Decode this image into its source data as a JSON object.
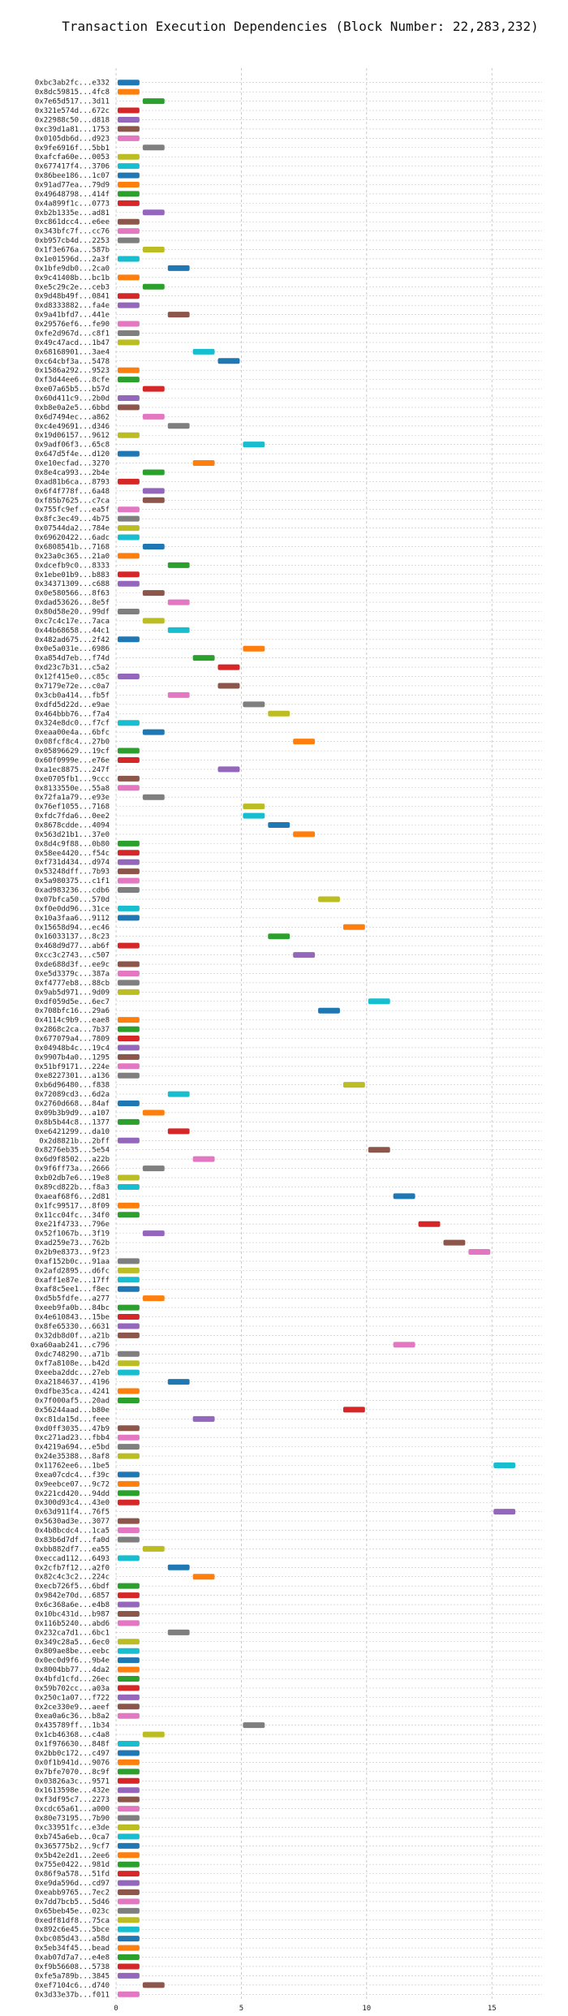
{
  "chart_data": {
    "type": "bar",
    "orientation": "horizontal",
    "title": "Transaction Execution Dependencies (Block Number: 22,283,232)",
    "xlabel": "",
    "ylabel": "",
    "xlim": [
      0,
      17
    ],
    "xticks": [
      0,
      5,
      10,
      15
    ],
    "grid": true,
    "colors": [
      "#1f77b4",
      "#ff7f0e",
      "#2ca02c",
      "#d62728",
      "#9467bd",
      "#8c564b",
      "#e377c2",
      "#7f7f7f",
      "#bcbd22",
      "#17becf"
    ],
    "transactions": [
      {
        "label": "0xbc3ab2fc...e332",
        "start": 0,
        "end": 1
      },
      {
        "label": "0x8dc59815...4fc8",
        "start": 0,
        "end": 1
      },
      {
        "label": "0x7e65d517...3d11",
        "start": 1,
        "end": 2
      },
      {
        "label": "0x321e574d...672c",
        "start": 0,
        "end": 1
      },
      {
        "label": "0x22988c50...d818",
        "start": 0,
        "end": 1
      },
      {
        "label": "0xc39d1a81...1753",
        "start": 0,
        "end": 1
      },
      {
        "label": "0x0105db6d...d923",
        "start": 0,
        "end": 1
      },
      {
        "label": "0x9fe6916f...5bb1",
        "start": 1,
        "end": 2
      },
      {
        "label": "0xafcfa60e...0053",
        "start": 0,
        "end": 1
      },
      {
        "label": "0x677417f4...3706",
        "start": 0,
        "end": 1
      },
      {
        "label": "0x86bee186...1c07",
        "start": 0,
        "end": 1
      },
      {
        "label": "0x91ad77ea...79d9",
        "start": 0,
        "end": 1
      },
      {
        "label": "0x49648798...414f",
        "start": 0,
        "end": 1
      },
      {
        "label": "0x4a899f1c...0773",
        "start": 0,
        "end": 1
      },
      {
        "label": "0xb2b1335e...ad81",
        "start": 1,
        "end": 2
      },
      {
        "label": "0xc861dcc4...e6ee",
        "start": 0,
        "end": 1
      },
      {
        "label": "0x343bfc7f...cc76",
        "start": 0,
        "end": 1
      },
      {
        "label": "0xb957cb4d...2253",
        "start": 0,
        "end": 1
      },
      {
        "label": "0x1f3e676a...587b",
        "start": 1,
        "end": 2
      },
      {
        "label": "0x1e01596d...2a3f",
        "start": 0,
        "end": 1
      },
      {
        "label": "0x1bfe9db0...2ca0",
        "start": 2,
        "end": 3
      },
      {
        "label": "0x9c41408b...bc1b",
        "start": 0,
        "end": 1
      },
      {
        "label": "0xe5c29c2e...ceb3",
        "start": 1,
        "end": 2
      },
      {
        "label": "0x9d48b49f...0841",
        "start": 0,
        "end": 1
      },
      {
        "label": "0xd8333882...fa4e",
        "start": 0,
        "end": 1
      },
      {
        "label": "0x9a41bfd7...441e",
        "start": 2,
        "end": 3
      },
      {
        "label": "0x29576ef6...fe90",
        "start": 0,
        "end": 1
      },
      {
        "label": "0xfe2d967d...c8f1",
        "start": 0,
        "end": 1
      },
      {
        "label": "0x49c47acd...1b47",
        "start": 0,
        "end": 1
      },
      {
        "label": "0x68168901...3ae4",
        "start": 3,
        "end": 4
      },
      {
        "label": "0xc64cbf3a...5478",
        "start": 4,
        "end": 5
      },
      {
        "label": "0x1586a292...9523",
        "start": 0,
        "end": 1
      },
      {
        "label": "0xf3d44ee6...8cfe",
        "start": 0,
        "end": 1
      },
      {
        "label": "0xe07a65b5...b57d",
        "start": 1,
        "end": 2
      },
      {
        "label": "0x60d411c9...2b0d",
        "start": 0,
        "end": 1
      },
      {
        "label": "0xb8e0a2e5...6bbd",
        "start": 0,
        "end": 1
      },
      {
        "label": "0x6d7494ec...a862",
        "start": 1,
        "end": 2
      },
      {
        "label": "0xc4e49691...d346",
        "start": 2,
        "end": 3
      },
      {
        "label": "0x19d06157...9612",
        "start": 0,
        "end": 1
      },
      {
        "label": "0x9adf06f3...65c8",
        "start": 5,
        "end": 6
      },
      {
        "label": "0x647d5f4e...d120",
        "start": 0,
        "end": 1
      },
      {
        "label": "0xe10ecfad...3270",
        "start": 3,
        "end": 4
      },
      {
        "label": "0x8e4ca993...2b4e",
        "start": 1,
        "end": 2
      },
      {
        "label": "0xad81b6ca...8793",
        "start": 0,
        "end": 1
      },
      {
        "label": "0x6f4f778f...6a48",
        "start": 1,
        "end": 2
      },
      {
        "label": "0xf85b7625...c7ca",
        "start": 1,
        "end": 2
      },
      {
        "label": "0x755fc9ef...ea5f",
        "start": 0,
        "end": 1
      },
      {
        "label": "0x8fc3ec49...4b75",
        "start": 0,
        "end": 1
      },
      {
        "label": "0x07544da2...784e",
        "start": 0,
        "end": 1
      },
      {
        "label": "0x69620422...6adc",
        "start": 0,
        "end": 1
      },
      {
        "label": "0x6808541b...7168",
        "start": 1,
        "end": 2
      },
      {
        "label": "0x23a0c365...21a0",
        "start": 0,
        "end": 1
      },
      {
        "label": "0xdcefb9c0...8333",
        "start": 2,
        "end": 3
      },
      {
        "label": "0x1ebe01b9...b883",
        "start": 0,
        "end": 1
      },
      {
        "label": "0x34371309...c688",
        "start": 0,
        "end": 1
      },
      {
        "label": "0x0e580566...8f63",
        "start": 1,
        "end": 2
      },
      {
        "label": "0xdad53626...8e5f",
        "start": 2,
        "end": 3
      },
      {
        "label": "0x80d58e20...99df",
        "start": 0,
        "end": 1
      },
      {
        "label": "0xc7c4c17e...7aca",
        "start": 1,
        "end": 2
      },
      {
        "label": "0x44b68658...44c1",
        "start": 2,
        "end": 3
      },
      {
        "label": "0x482ad675...2f42",
        "start": 0,
        "end": 1
      },
      {
        "label": "0x0e5a031e...6986",
        "start": 5,
        "end": 6
      },
      {
        "label": "0xa854d7eb...f74d",
        "start": 3,
        "end": 4
      },
      {
        "label": "0xd23c7b31...c5a2",
        "start": 4,
        "end": 5
      },
      {
        "label": "0x12f415e0...c85c",
        "start": 0,
        "end": 1
      },
      {
        "label": "0x7179e72e...c0a7",
        "start": 4,
        "end": 5
      },
      {
        "label": "0x3cb0a414...fb5f",
        "start": 2,
        "end": 3
      },
      {
        "label": "0xdfd5d22d...e9ae",
        "start": 5,
        "end": 6
      },
      {
        "label": "0x464bbb76...f7a4",
        "start": 6,
        "end": 7
      },
      {
        "label": "0x324e8dc0...f7cf",
        "start": 0,
        "end": 1
      },
      {
        "label": "0xeaa00e4a...6bfc",
        "start": 1,
        "end": 2
      },
      {
        "label": "0x08fcf8c4...27b0",
        "start": 7,
        "end": 8
      },
      {
        "label": "0x05896629...19cf",
        "start": 0,
        "end": 1
      },
      {
        "label": "0x60f0999e...e76e",
        "start": 0,
        "end": 1
      },
      {
        "label": "0xa1ec8875...247f",
        "start": 4,
        "end": 5
      },
      {
        "label": "0xe0705fb1...9ccc",
        "start": 0,
        "end": 1
      },
      {
        "label": "0x8133550e...55a8",
        "start": 0,
        "end": 1
      },
      {
        "label": "0x72fa1a79...e93e",
        "start": 1,
        "end": 2
      },
      {
        "label": "0x76ef1055...7168",
        "start": 5,
        "end": 6
      },
      {
        "label": "0xfdc7fda6...0ee2",
        "start": 5,
        "end": 6
      },
      {
        "label": "0x8678cdde...4094",
        "start": 6,
        "end": 7
      },
      {
        "label": "0x563d21b1...37e0",
        "start": 7,
        "end": 8
      },
      {
        "label": "0x8d4c9f88...0b80",
        "start": 0,
        "end": 1
      },
      {
        "label": "0x58ee4420...f54c",
        "start": 0,
        "end": 1
      },
      {
        "label": "0xf731d434...d974",
        "start": 0,
        "end": 1
      },
      {
        "label": "0x53248dff...7b93",
        "start": 0,
        "end": 1
      },
      {
        "label": "0x5a980375...c1f1",
        "start": 0,
        "end": 1
      },
      {
        "label": "0xad983236...cdb6",
        "start": 0,
        "end": 1
      },
      {
        "label": "0x07bfca50...570d",
        "start": 8,
        "end": 9
      },
      {
        "label": "0xf0e0dd96...31ce",
        "start": 0,
        "end": 1
      },
      {
        "label": "0x10a3faa6...9112",
        "start": 0,
        "end": 1
      },
      {
        "label": "0x15658d94...ec46",
        "start": 9,
        "end": 10
      },
      {
        "label": "0x16033137...8c23",
        "start": 6,
        "end": 7
      },
      {
        "label": "0x468d9d77...ab6f",
        "start": 0,
        "end": 1
      },
      {
        "label": "0xcc3c2743...c507",
        "start": 7,
        "end": 8
      },
      {
        "label": "0xde688d3f...ee9c",
        "start": 0,
        "end": 1
      },
      {
        "label": "0xe5d3379c...387a",
        "start": 0,
        "end": 1
      },
      {
        "label": "0xf4777eb8...88cb",
        "start": 0,
        "end": 1
      },
      {
        "label": "0x9ab5d971...9d09",
        "start": 0,
        "end": 1
      },
      {
        "label": "0xdf059d5e...6ec7",
        "start": 10,
        "end": 11
      },
      {
        "label": "0x708bfc16...29a6",
        "start": 8,
        "end": 9
      },
      {
        "label": "0x4114c9b9...eae8",
        "start": 0,
        "end": 1
      },
      {
        "label": "0x2868c2ca...7b37",
        "start": 0,
        "end": 1
      },
      {
        "label": "0x677079a4...7809",
        "start": 0,
        "end": 1
      },
      {
        "label": "0x04948b4c...19c4",
        "start": 0,
        "end": 1
      },
      {
        "label": "0x9907b4a0...1295",
        "start": 0,
        "end": 1
      },
      {
        "label": "0x51bf9171...224e",
        "start": 0,
        "end": 1
      },
      {
        "label": "0xe8227301...a136",
        "start": 0,
        "end": 1
      },
      {
        "label": "0xb6d96480...f838",
        "start": 9,
        "end": 10
      },
      {
        "label": "0x72089cd3...6d2a",
        "start": 2,
        "end": 3
      },
      {
        "label": "0x2760d668...84af",
        "start": 0,
        "end": 1
      },
      {
        "label": "0x09b3b9d9...a107",
        "start": 1,
        "end": 2
      },
      {
        "label": "0x8b5b44c8...1377",
        "start": 0,
        "end": 1
      },
      {
        "label": "0xe6421299...da10",
        "start": 2,
        "end": 3
      },
      {
        "label": "0x2d8821b...2bff",
        "start": 0,
        "end": 1
      },
      {
        "label": "0x8276eb35...5e54",
        "start": 10,
        "end": 11
      },
      {
        "label": "0x6d9f8502...a22b",
        "start": 3,
        "end": 4
      },
      {
        "label": "0x9f6ff73a...2666",
        "start": 1,
        "end": 2
      },
      {
        "label": "0xb02db7e6...19e8",
        "start": 0,
        "end": 1
      },
      {
        "label": "0x89cd822b...f8a3",
        "start": 0,
        "end": 1
      },
      {
        "label": "0xaeaf68f6...2d81",
        "start": 11,
        "end": 12
      },
      {
        "label": "0x1fc99517...8f09",
        "start": 0,
        "end": 1
      },
      {
        "label": "0x11cc04fc...34f0",
        "start": 0,
        "end": 1
      },
      {
        "label": "0xe21f4733...796e",
        "start": 12,
        "end": 13
      },
      {
        "label": "0x52f1067b...3f19",
        "start": 1,
        "end": 2
      },
      {
        "label": "0xad259e73...762b",
        "start": 13,
        "end": 14
      },
      {
        "label": "0x2b9e8373...9f23",
        "start": 14,
        "end": 15
      },
      {
        "label": "0xaf152b0c...91aa",
        "start": 0,
        "end": 1
      },
      {
        "label": "0x2afd2895...d6fc",
        "start": 0,
        "end": 1
      },
      {
        "label": "0xaff1e87e...17ff",
        "start": 0,
        "end": 1
      },
      {
        "label": "0xaf8c5ee1...f8ec",
        "start": 0,
        "end": 1
      },
      {
        "label": "0xd5b5fdfe...a277",
        "start": 1,
        "end": 2
      },
      {
        "label": "0xeeb9fa0b...84bc",
        "start": 0,
        "end": 1
      },
      {
        "label": "0x4e610843...15be",
        "start": 0,
        "end": 1
      },
      {
        "label": "0x8fe65330...6631",
        "start": 0,
        "end": 1
      },
      {
        "label": "0x32db8d0f...a21b",
        "start": 0,
        "end": 1
      },
      {
        "label": "0xa60aab241...c796",
        "start": 11,
        "end": 12
      },
      {
        "label": "0xdc748290...a71b",
        "start": 0,
        "end": 1
      },
      {
        "label": "0xf7a8108e...b42d",
        "start": 0,
        "end": 1
      },
      {
        "label": "0xeeba2ddc...27eb",
        "start": 0,
        "end": 1
      },
      {
        "label": "0xa2184637...4196",
        "start": 2,
        "end": 3
      },
      {
        "label": "0xdfbe35ca...4241",
        "start": 0,
        "end": 1
      },
      {
        "label": "0x7f000af5...20ad",
        "start": 0,
        "end": 1
      },
      {
        "label": "0x56244aad...b80e",
        "start": 9,
        "end": 10
      },
      {
        "label": "0xc81da15d...feee",
        "start": 3,
        "end": 4
      },
      {
        "label": "0xd0ff3035...47b9",
        "start": 0,
        "end": 1
      },
      {
        "label": "0xc271ad23...fbb4",
        "start": 0,
        "end": 1
      },
      {
        "label": "0x4219a694...e5bd",
        "start": 0,
        "end": 1
      },
      {
        "label": "0x24e35388...8af8",
        "start": 0,
        "end": 1
      },
      {
        "label": "0x11762ee6...1be5",
        "start": 15,
        "end": 16
      },
      {
        "label": "0xea07cdc4...f39c",
        "start": 0,
        "end": 1
      },
      {
        "label": "0x9eebce07...9c72",
        "start": 0,
        "end": 1
      },
      {
        "label": "0x221cd420...94dd",
        "start": 0,
        "end": 1
      },
      {
        "label": "0x300d93c4...43e0",
        "start": 0,
        "end": 1
      },
      {
        "label": "0x63d911f4...76f5",
        "start": 15,
        "end": 16
      },
      {
        "label": "0x5630ad3e...3077",
        "start": 0,
        "end": 1
      },
      {
        "label": "0x4b8bcdc4...1ca5",
        "start": 0,
        "end": 1
      },
      {
        "label": "0x83b6d7df...fa0d",
        "start": 0,
        "end": 1
      },
      {
        "label": "0xbb882df7...ea55",
        "start": 1,
        "end": 2
      },
      {
        "label": "0xeccad112...6493",
        "start": 0,
        "end": 1
      },
      {
        "label": "0x2cfb7f12...a2f0",
        "start": 2,
        "end": 3
      },
      {
        "label": "0x82c4c3c2...224c",
        "start": 3,
        "end": 4
      },
      {
        "label": "0xecb726f5...6bdf",
        "start": 0,
        "end": 1
      },
      {
        "label": "0x9842e70d...6857",
        "start": 0,
        "end": 1
      },
      {
        "label": "0x6c368a6e...e4b8",
        "start": 0,
        "end": 1
      },
      {
        "label": "0x10bc431d...b987",
        "start": 0,
        "end": 1
      },
      {
        "label": "0x116b5240...abd6",
        "start": 0,
        "end": 1
      },
      {
        "label": "0x232ca7d1...6bc1",
        "start": 2,
        "end": 3
      },
      {
        "label": "0x349c28a5...6ec0",
        "start": 0,
        "end": 1
      },
      {
        "label": "0x809ae8be...eebc",
        "start": 0,
        "end": 1
      },
      {
        "label": "0x0ec0d9f6...9b4e",
        "start": 0,
        "end": 1
      },
      {
        "label": "0x8004bb77...4da2",
        "start": 0,
        "end": 1
      },
      {
        "label": "0x4bfd1cfd...26ec",
        "start": 0,
        "end": 1
      },
      {
        "label": "0x59b702cc...a03a",
        "start": 0,
        "end": 1
      },
      {
        "label": "0x250c1a07...f722",
        "start": 0,
        "end": 1
      },
      {
        "label": "0x2ce330e9...aeef",
        "start": 0,
        "end": 1
      },
      {
        "label": "0xea0a6c36...b8a2",
        "start": 0,
        "end": 1
      },
      {
        "label": "0x435789ff...1b34",
        "start": 5,
        "end": 6
      },
      {
        "label": "0x1cb46368...c4a8",
        "start": 1,
        "end": 2
      },
      {
        "label": "0x1f976630...848f",
        "start": 0,
        "end": 1
      },
      {
        "label": "0x2bb0c172...c497",
        "start": 0,
        "end": 1
      },
      {
        "label": "0x0f1b941d...9076",
        "start": 0,
        "end": 1
      },
      {
        "label": "0x7bfe7070...8c9f",
        "start": 0,
        "end": 1
      },
      {
        "label": "0x03826a3c...9571",
        "start": 0,
        "end": 1
      },
      {
        "label": "0x1613598e...432e",
        "start": 0,
        "end": 1
      },
      {
        "label": "0xf3df95c7...2273",
        "start": 0,
        "end": 1
      },
      {
        "label": "0xcdc65a61...a000",
        "start": 0,
        "end": 1
      },
      {
        "label": "0x80e73195...7b90",
        "start": 0,
        "end": 1
      },
      {
        "label": "0xc33951fc...e3de",
        "start": 0,
        "end": 1
      },
      {
        "label": "0xb745a6eb...0ca7",
        "start": 0,
        "end": 1
      },
      {
        "label": "0x365775b2...9cf7",
        "start": 0,
        "end": 1
      },
      {
        "label": "0x5b42e2d1...2ee6",
        "start": 0,
        "end": 1
      },
      {
        "label": "0x755e0422...981d",
        "start": 0,
        "end": 1
      },
      {
        "label": "0x86f9a578...51fd",
        "start": 0,
        "end": 1
      },
      {
        "label": "0xe9da596d...cd97",
        "start": 0,
        "end": 1
      },
      {
        "label": "0xeabb9765...7ec2",
        "start": 0,
        "end": 1
      },
      {
        "label": "0x7dd7bcb5...5d46",
        "start": 0,
        "end": 1
      },
      {
        "label": "0x65beb45e...023c",
        "start": 0,
        "end": 1
      },
      {
        "label": "0xedf81df8...75ca",
        "start": 0,
        "end": 1
      },
      {
        "label": "0x892c6e45...5bce",
        "start": 0,
        "end": 1
      },
      {
        "label": "0xbc085d43...a58d",
        "start": 0,
        "end": 1
      },
      {
        "label": "0x5eb34f45...bead",
        "start": 0,
        "end": 1
      },
      {
        "label": "0xab07d7a7...e4e8",
        "start": 0,
        "end": 1
      },
      {
        "label": "0xf9b56608...5738",
        "start": 0,
        "end": 1
      },
      {
        "label": "0xfe5a789b...3845",
        "start": 0,
        "end": 1
      },
      {
        "label": "0xef7104c6...d740",
        "start": 1,
        "end": 2
      },
      {
        "label": "0x3d33e37b...f011",
        "start": 0,
        "end": 1
      }
    ]
  }
}
